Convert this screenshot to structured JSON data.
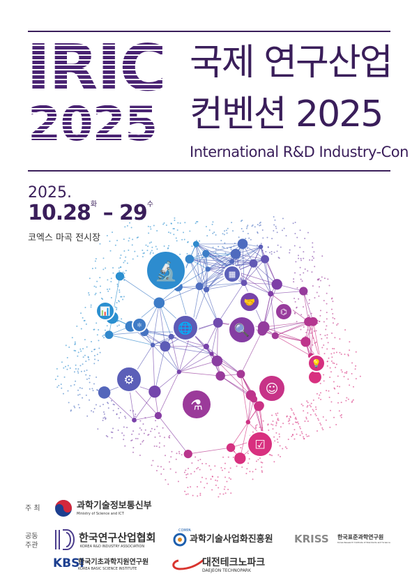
{
  "header": {
    "logo_line1": "IRIC",
    "logo_line2": "2025",
    "title_line1": "국제 연구산업",
    "title_line2": "컨벤션 2025",
    "subtitle": "International R&D Industry-Con"
  },
  "event": {
    "year": "2025.",
    "start": "10.28",
    "start_day": "화",
    "dash": "–",
    "end": "29",
    "end_day": "수",
    "venue": "코엑스 마곡 전시장"
  },
  "illustration": {
    "icons": [
      "microscope-icon",
      "chip-icon",
      "handshake-icon",
      "bar-chart-icon",
      "atom-icon",
      "globe-icon",
      "document-search-icon",
      "molecule-icon",
      "lightbulb-icon",
      "lab-equipment-icon",
      "brain-head-icon",
      "plant-flask-icon",
      "checklist-icon"
    ],
    "colors": {
      "blue": "#2a8fd0",
      "purple": "#7b3fa8",
      "pink": "#d8307f"
    }
  },
  "footer": {
    "host_label": "주 최",
    "host": {
      "name": "과학기술정보통신부",
      "sub": "Ministry of Science and ICT"
    },
    "cohost_label_1": "공동",
    "cohost_label_2": "주관",
    "cohosts": [
      {
        "name": "한국연구산업협회",
        "sub": "KOREA R&D INDUSTRY ASSOCIATION"
      },
      {
        "name": "과학기술사업화진흥원",
        "sub": "COMPA"
      },
      {
        "name": "한국표준과학연구원",
        "sub": "Korea Research Institute of Standards and Science",
        "logo": "KRISS"
      },
      {
        "name": "한국기초과학지원연구원",
        "sub": "KOREA BASIC SCIENCE INSTITUTE",
        "logo": "KBSI"
      },
      {
        "name": "대전테크노파크",
        "sub": "DAEJEON TECHNOPARK"
      }
    ]
  }
}
